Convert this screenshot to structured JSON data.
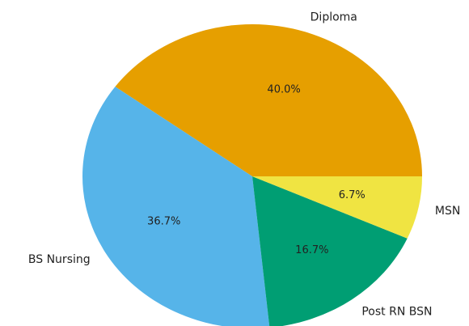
{
  "chart_data": {
    "type": "pie",
    "categories": [
      "Diploma",
      "BS Nursing",
      "Post RN BSN",
      "MSN"
    ],
    "values": [
      40.0,
      36.7,
      16.7,
      6.7
    ],
    "value_labels": [
      "40.0%",
      "36.7%",
      "16.7%",
      "6.7%"
    ],
    "colors": [
      "#E69F00",
      "#56B4E9",
      "#009E73",
      "#F0E442"
    ]
  }
}
